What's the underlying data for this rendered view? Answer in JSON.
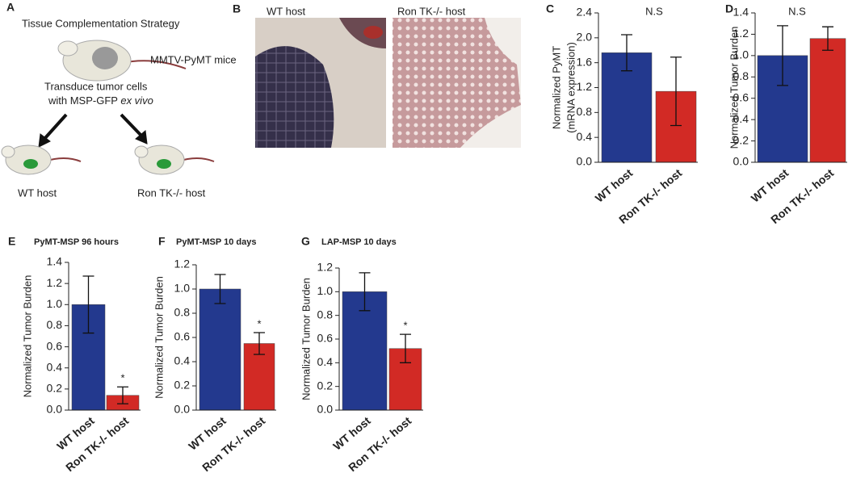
{
  "panel_a": {
    "label": "A",
    "title": "Tissue Complementation Strategy",
    "mice": "MMTV-PyMT mice",
    "step_line1": "Transduce tumor cells",
    "step_line2": "with MSP-GFP ",
    "step_italic": "ex vivo",
    "left_host": "WT host",
    "right_host": "Ron TK-/- host"
  },
  "panel_b": {
    "label": "B",
    "left_caption": "WT host",
    "right_caption": "Ron TK-/- host"
  },
  "chart_data": [
    {
      "type": "bar",
      "panel": "C",
      "ylabel": [
        "Normalized PyMT",
        "(mRNA expression)"
      ],
      "annotation": "N.S",
      "categories": [
        "WT host",
        "Ron TK-/- host"
      ],
      "values": [
        1.76,
        1.14
      ],
      "errors": [
        0.29,
        0.55
      ],
      "colors": [
        "#23398e",
        "#d22a25"
      ],
      "ylim": [
        0,
        2.4
      ],
      "yticks": [
        {
          "value": 0,
          "label": "0.0"
        },
        0.4,
        0.8,
        1.2,
        1.6,
        {
          "value": 2,
          "label": "2.0"
        },
        2.4
      ]
    },
    {
      "type": "bar",
      "panel": "D",
      "ylabel": [
        "Normalized Tumor Burden"
      ],
      "annotation": "N.S",
      "categories": [
        "WT host",
        "Ron TK-/- host"
      ],
      "values": [
        1.0,
        1.16
      ],
      "errors": [
        0.28,
        0.11
      ],
      "colors": [
        "#23398e",
        "#d22a25"
      ],
      "ylim": [
        0,
        1.4
      ],
      "yticks": [
        {
          "value": 0,
          "label": "0.0"
        },
        0.2,
        0.4,
        0.6,
        0.8,
        {
          "value": 1,
          "label": "1.0"
        },
        1.2,
        1.4
      ]
    },
    {
      "type": "bar",
      "panel": "E",
      "title": "PyMT-MSP 96 hours",
      "ylabel": [
        "Normalized Tumor Burden"
      ],
      "categories": [
        "WT host",
        "Ron TK-/- host"
      ],
      "values": [
        1.0,
        0.14
      ],
      "errors": [
        0.27,
        0.08
      ],
      "markers": [
        null,
        "*"
      ],
      "colors": [
        "#23398e",
        "#d22a25"
      ],
      "ylim": [
        0,
        1.4
      ],
      "yticks": [
        {
          "value": 0,
          "label": "0.0"
        },
        0.2,
        0.4,
        0.6,
        0.8,
        {
          "value": 1,
          "label": "1.0"
        },
        1.2,
        1.4
      ]
    },
    {
      "type": "bar",
      "panel": "F",
      "title": "PyMT-MSP 10 days",
      "ylabel": [
        "Normalized Tumor Burden"
      ],
      "categories": [
        "WT host",
        "Ron TK-/- host"
      ],
      "values": [
        1.0,
        0.55
      ],
      "errors": [
        0.12,
        0.09
      ],
      "markers": [
        null,
        "*"
      ],
      "colors": [
        "#23398e",
        "#d22a25"
      ],
      "ylim": [
        0,
        1.2
      ],
      "yticks": [
        {
          "value": 0,
          "label": "0.0"
        },
        0.2,
        0.4,
        0.6,
        0.8,
        {
          "value": 1,
          "label": "1.0"
        },
        1.2
      ]
    },
    {
      "type": "bar",
      "panel": "G",
      "title": "LAP-MSP 10 days",
      "ylabel": [
        "Normalized Tumor Burden"
      ],
      "categories": [
        "WT host",
        "Ron TK-/- host"
      ],
      "values": [
        1.0,
        0.52
      ],
      "errors": [
        0.16,
        0.12
      ],
      "markers": [
        null,
        "*"
      ],
      "colors": [
        "#23398e",
        "#d22a25"
      ],
      "ylim": [
        0,
        1.2
      ],
      "yticks": [
        {
          "value": 0,
          "label": "0.0"
        },
        0.2,
        0.4,
        0.6,
        0.8,
        {
          "value": 1,
          "label": "1.0"
        },
        1.2
      ]
    }
  ]
}
